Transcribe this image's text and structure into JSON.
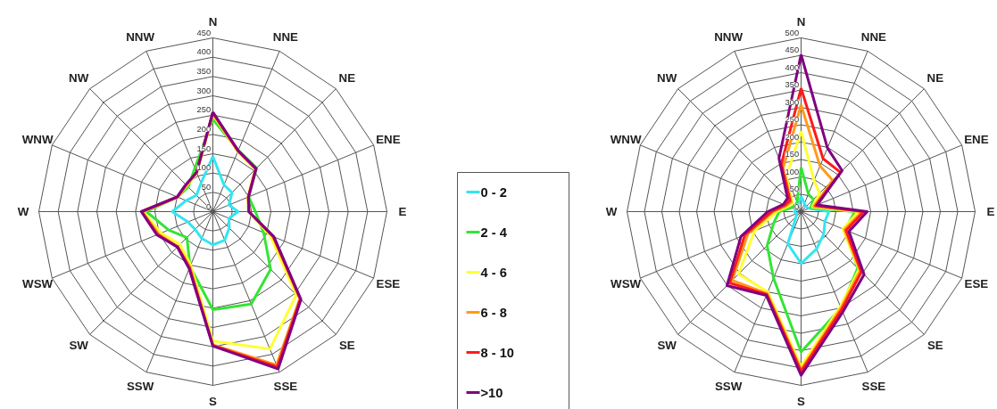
{
  "chart_data": [
    {
      "type": "radar",
      "categories": [
        "N",
        "NNE",
        "NE",
        "ENE",
        "E",
        "ESE",
        "SE",
        "SSE",
        "S",
        "SSW",
        "SW",
        "WSW",
        "W",
        "WNW",
        "NW",
        "NNW"
      ],
      "ylim": [
        0,
        450
      ],
      "yticks": [
        0,
        50,
        100,
        150,
        200,
        250,
        300,
        350,
        400,
        450
      ],
      "legend": "right",
      "series": [
        {
          "name": "0 - 2",
          "color": "#33e5f2",
          "values": [
            143,
            75,
            70,
            45,
            65,
            45,
            60,
            80,
            86,
            75,
            65,
            70,
            105,
            75,
            60,
            80
          ]
        },
        {
          "name": "2 - 4",
          "color": "#33e533",
          "values": [
            239,
            172,
            160,
            100,
            110,
            142,
            211,
            259,
            254,
            154,
            95,
            124,
            172,
            99,
            90,
            122
          ]
        },
        {
          "name": "4 - 6",
          "color": "#ffff33",
          "values": [
            252,
            168,
            155,
            98,
            92,
            160,
            305,
            385,
            335,
            150,
            120,
            145,
            180,
            99,
            95,
            108
          ]
        },
        {
          "name": "6 - 8",
          "color": "#ff9a1a",
          "values": [
            255,
            170,
            157,
            99,
            93,
            168,
            318,
            430,
            345,
            155,
            128,
            152,
            183,
            99,
            97,
            109
          ]
        },
        {
          "name": "8 - 10",
          "color": "#ff1a1a",
          "values": [
            256,
            170,
            157,
            99,
            93,
            169,
            320,
            435,
            347,
            158,
            129,
            155,
            184,
            99,
            98,
            110
          ]
        },
        {
          "name": ">10",
          "color": "#800080",
          "values": [
            258,
            171,
            158,
            100,
            93,
            171,
            322,
            441,
            348,
            160,
            130,
            157,
            185,
            100,
            99,
            110
          ]
        }
      ]
    },
    {
      "type": "radar",
      "categories": [
        "N",
        "NNE",
        "NE",
        "ENE",
        "E",
        "ESE",
        "SE",
        "SSE",
        "S",
        "SSW",
        "SW",
        "WSW",
        "W",
        "WNW",
        "NW",
        "NNW"
      ],
      "ylim": [
        0,
        500
      ],
      "yticks": [
        0,
        50,
        100,
        150,
        200,
        250,
        300,
        350,
        400,
        450,
        500
      ],
      "series": [
        {
          "name": "0 - 2",
          "color": "#33e5f2",
          "values": [
            44,
            25,
            20,
            25,
            80,
            74,
            92,
            116,
            149,
            100,
            20,
            15,
            20,
            15,
            15,
            20
          ]
        },
        {
          "name": "2 - 4",
          "color": "#33e533",
          "values": [
            127,
            55,
            50,
            30,
            155,
            136,
            230,
            300,
            404,
            207,
            138,
            85,
            63,
            30,
            25,
            30
          ]
        },
        {
          "name": "4 - 6",
          "color": "#ffff33",
          "values": [
            232,
            97,
            75,
            35,
            165,
            130,
            235,
            295,
            445,
            250,
            254,
            145,
            70,
            40,
            35,
            110
          ]
        },
        {
          "name": "6 - 8",
          "color": "#ff9a1a",
          "values": [
            307,
            142,
            128,
            40,
            175,
            135,
            240,
            300,
            455,
            255,
            280,
            165,
            80,
            45,
            40,
            135
          ]
        },
        {
          "name": "8 - 10",
          "color": "#ff1a1a",
          "values": [
            355,
            165,
            160,
            45,
            180,
            140,
            245,
            305,
            460,
            258,
            290,
            175,
            85,
            50,
            45,
            148
          ]
        },
        {
          "name": ">10",
          "color": "#800080",
          "values": [
            452,
            198,
            167,
            50,
            190,
            149,
            256,
            313,
            471,
            261,
            301,
            187,
            96,
            55,
            55,
            166
          ]
        }
      ]
    }
  ]
}
